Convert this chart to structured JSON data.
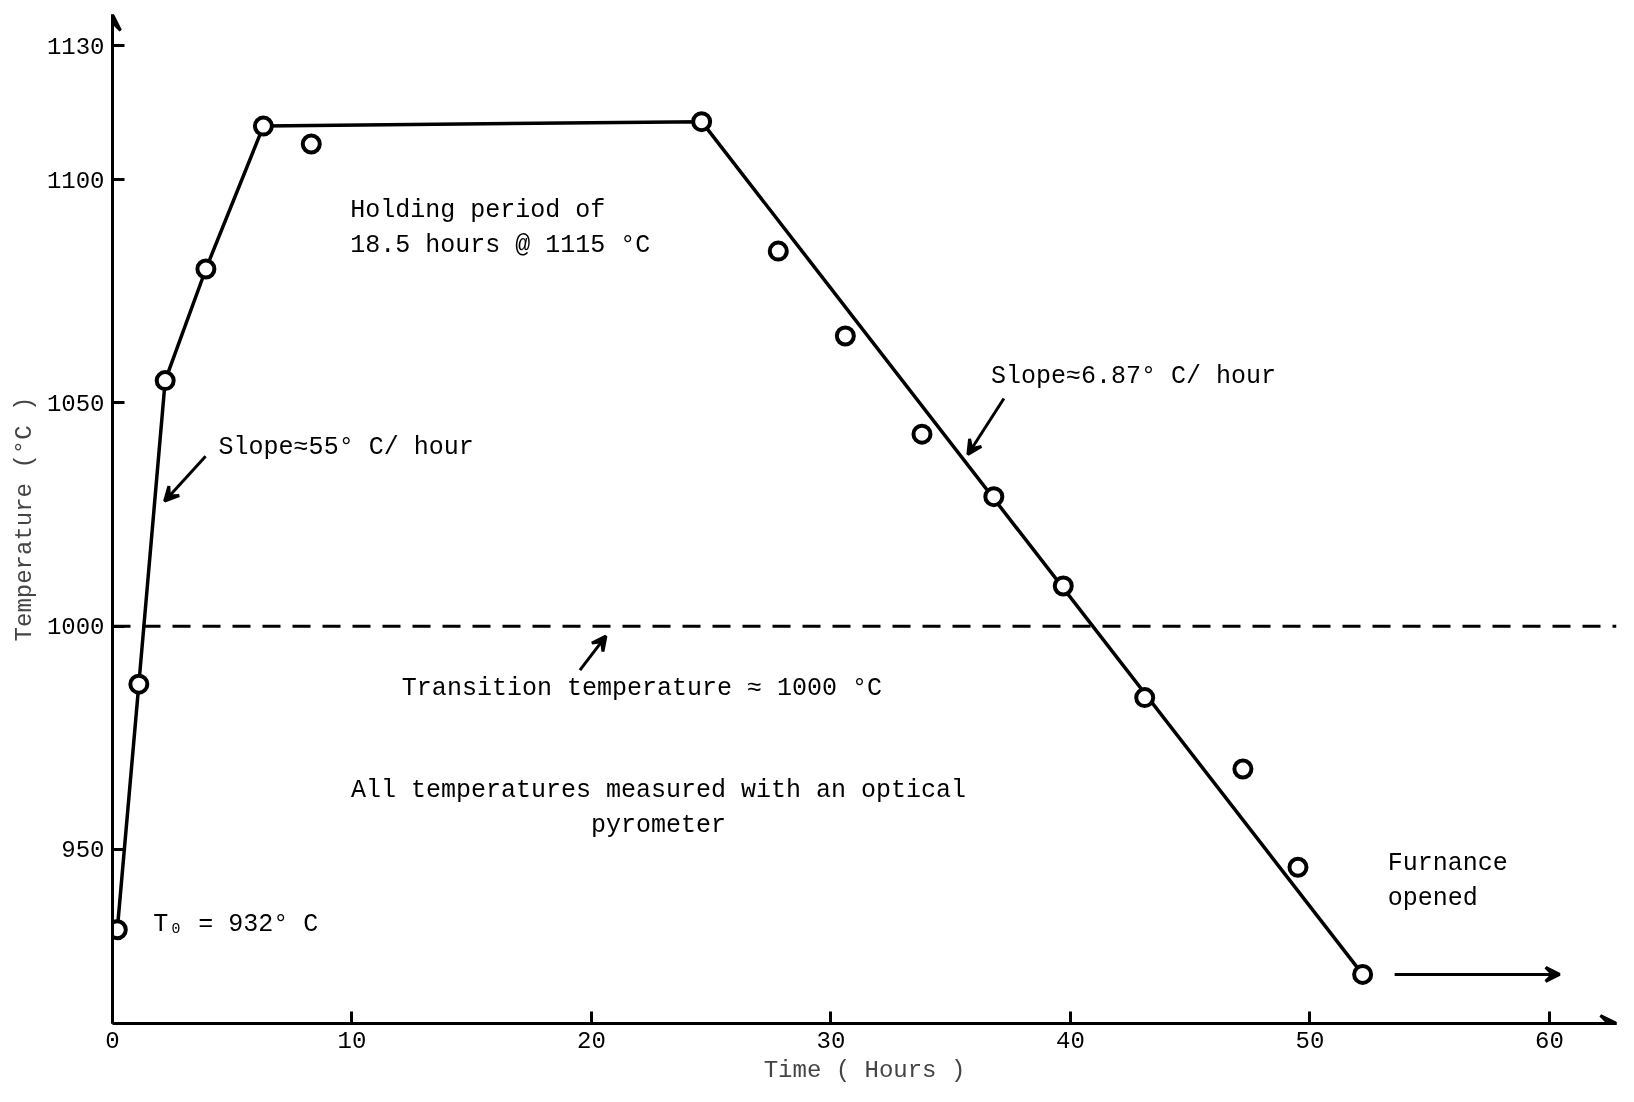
{
  "chart_data": {
    "type": "scatter",
    "xlabel": "Time ( Hours )",
    "ylabel": "Temperature (°C )",
    "xlim": [
      0,
      62.8
    ],
    "ylim": [
      911,
      1137
    ],
    "xticks": [
      0,
      10,
      20,
      30,
      40,
      50,
      60
    ],
    "yticks": [
      950,
      1000,
      1050,
      1100,
      1130
    ],
    "series": [
      {
        "color": "#000000",
        "marker": "circle",
        "x": [
          0.2,
          1.1,
          2.2,
          3.9,
          6.3,
          8.3,
          24.6,
          27.8,
          30.6,
          33.8,
          36.8,
          39.7,
          43.1,
          47.2,
          49.5,
          52.2
        ],
        "values": [
          932,
          987,
          1055,
          1080,
          1112,
          1108,
          1113,
          1084,
          1065,
          1043,
          1029,
          1009,
          984,
          968,
          946,
          922
        ]
      },
      {
        "type": "line",
        "color": "#000000",
        "x": [
          0.2,
          1.1,
          2.2,
          3.9,
          6.3,
          24.6,
          52.2
        ],
        "values": [
          932,
          987,
          1055,
          1080,
          1112,
          1113,
          922
        ]
      }
    ],
    "ref_lines": [
      {
        "axis": "y",
        "value": 1000,
        "label": "Transition temperature ≈ 1000 °C",
        "line_style": "dashed",
        "color": "#000000"
      }
    ],
    "annotations": [
      "Holding period of 18.5 hours @ 1115 °C",
      "All temperatures measured with an optical pyrometer",
      {
        "text": "Slope≈55° C/ hour",
        "x": 1.8,
        "y": 1028
      },
      {
        "text": "Slope≈6.87° C/ hour",
        "x": 35.3,
        "y": 1038
      },
      {
        "text": "T₀ = 932° C",
        "x": 0.2,
        "y": 932
      },
      {
        "text": "Furnance opened",
        "x": 52.2,
        "y": 922
      }
    ]
  }
}
